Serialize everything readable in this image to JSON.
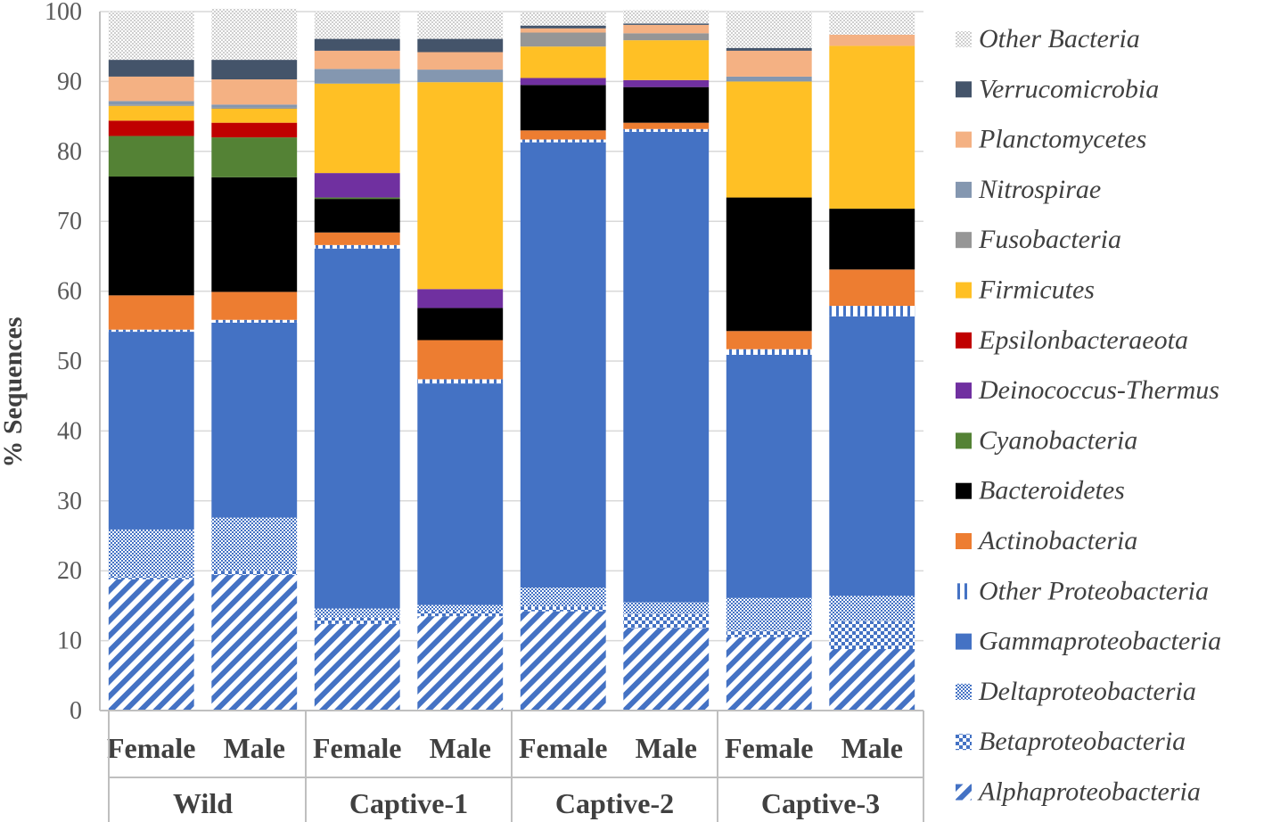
{
  "chart_data": {
    "type": "bar",
    "stacked": true,
    "ylabel": "% Sequences",
    "ylim": [
      0,
      100
    ],
    "yticks": [
      0,
      10,
      20,
      30,
      40,
      50,
      60,
      70,
      80,
      90,
      100
    ],
    "groups": [
      {
        "name": "Wild",
        "categories": [
          "Female",
          "Male"
        ]
      },
      {
        "name": "Captive-1",
        "categories": [
          "Female",
          "Male"
        ]
      },
      {
        "name": "Captive-2",
        "categories": [
          "Female",
          "Male"
        ]
      },
      {
        "name": "Captive-3",
        "categories": [
          "Female",
          "Male"
        ]
      }
    ],
    "series": [
      {
        "name": "Alphaproteobacteria",
        "color": "#4472C4",
        "pattern": "diag-stripes",
        "values": [
          18.8,
          19.4,
          12.4,
          13.5,
          14.2,
          11.8,
          10.5,
          8.8
        ]
      },
      {
        "name": "Betaproteobacteria",
        "color": "#4472C4",
        "pattern": "checker",
        "values": [
          0.4,
          0.6,
          0.9,
          0.7,
          0.7,
          2.0,
          1.0,
          4.0
        ]
      },
      {
        "name": "Deltaproteobacteria",
        "color": "#4472C4",
        "pattern": "fine-dots",
        "values": [
          6.7,
          7.6,
          1.3,
          0.9,
          2.7,
          1.7,
          4.6,
          3.6
        ]
      },
      {
        "name": "Gammaproteobacteria",
        "color": "#4472C4",
        "pattern": "solid",
        "values": [
          28.3,
          27.9,
          51.5,
          31.7,
          63.7,
          67.3,
          34.8,
          40.0
        ]
      },
      {
        "name": "Other Proteobacteria",
        "color": "#4472C4",
        "pattern": "vertical-dashes",
        "values": [
          0.3,
          0.4,
          0.5,
          0.6,
          0.4,
          0.4,
          0.8,
          1.5
        ]
      },
      {
        "name": "Actinobacteria",
        "color": "#ED7D31",
        "pattern": "solid",
        "values": [
          4.9,
          4.0,
          1.8,
          5.6,
          1.3,
          0.9,
          2.6,
          5.2
        ]
      },
      {
        "name": "Bacteroidetes",
        "color": "#000000",
        "pattern": "solid",
        "values": [
          17.0,
          16.4,
          4.8,
          4.6,
          6.5,
          5.1,
          19.1,
          8.7
        ]
      },
      {
        "name": "Cyanobacteria",
        "color": "#548235",
        "pattern": "solid",
        "values": [
          5.8,
          5.7,
          0.2,
          0.0,
          0.0,
          0.0,
          0.0,
          0.0
        ]
      },
      {
        "name": "Deinococcus-Thermus",
        "color": "#7030A0",
        "pattern": "solid",
        "values": [
          0.0,
          0.0,
          3.5,
          2.7,
          1.0,
          1.0,
          0.0,
          0.0
        ]
      },
      {
        "name": "Epsilonbacteraeota",
        "color": "#C00000",
        "pattern": "solid",
        "values": [
          2.2,
          2.1,
          0.0,
          0.0,
          0.0,
          0.0,
          0.0,
          0.0
        ]
      },
      {
        "name": "Firmicutes",
        "color": "#FFC025",
        "pattern": "solid",
        "values": [
          2.1,
          2.0,
          12.8,
          29.6,
          4.5,
          5.7,
          16.6,
          23.3
        ]
      },
      {
        "name": "Fusobacteria",
        "color": "#969696",
        "pattern": "solid",
        "values": [
          0.2,
          0.2,
          0.0,
          0.0,
          2.0,
          1.0,
          0.0,
          0.0
        ]
      },
      {
        "name": "Nitrospirae",
        "color": "#8497B0",
        "pattern": "solid",
        "values": [
          0.5,
          0.4,
          2.1,
          1.8,
          0.0,
          0.0,
          0.7,
          0.0
        ]
      },
      {
        "name": "Planctomycetes",
        "color": "#F4B183",
        "pattern": "solid",
        "values": [
          3.5,
          3.6,
          2.6,
          2.5,
          0.6,
          1.2,
          3.7,
          1.6
        ]
      },
      {
        "name": "Verrucomicrobia",
        "color": "#44546A",
        "pattern": "solid",
        "values": [
          2.4,
          2.8,
          1.7,
          1.9,
          0.4,
          0.2,
          0.4,
          0.0
        ]
      },
      {
        "name": "Other Bacteria",
        "color": "#D9D9D9",
        "pattern": "fine-dots",
        "values": [
          6.9,
          7.3,
          3.9,
          3.9,
          1.9,
          1.9,
          5.2,
          3.3
        ]
      }
    ]
  }
}
